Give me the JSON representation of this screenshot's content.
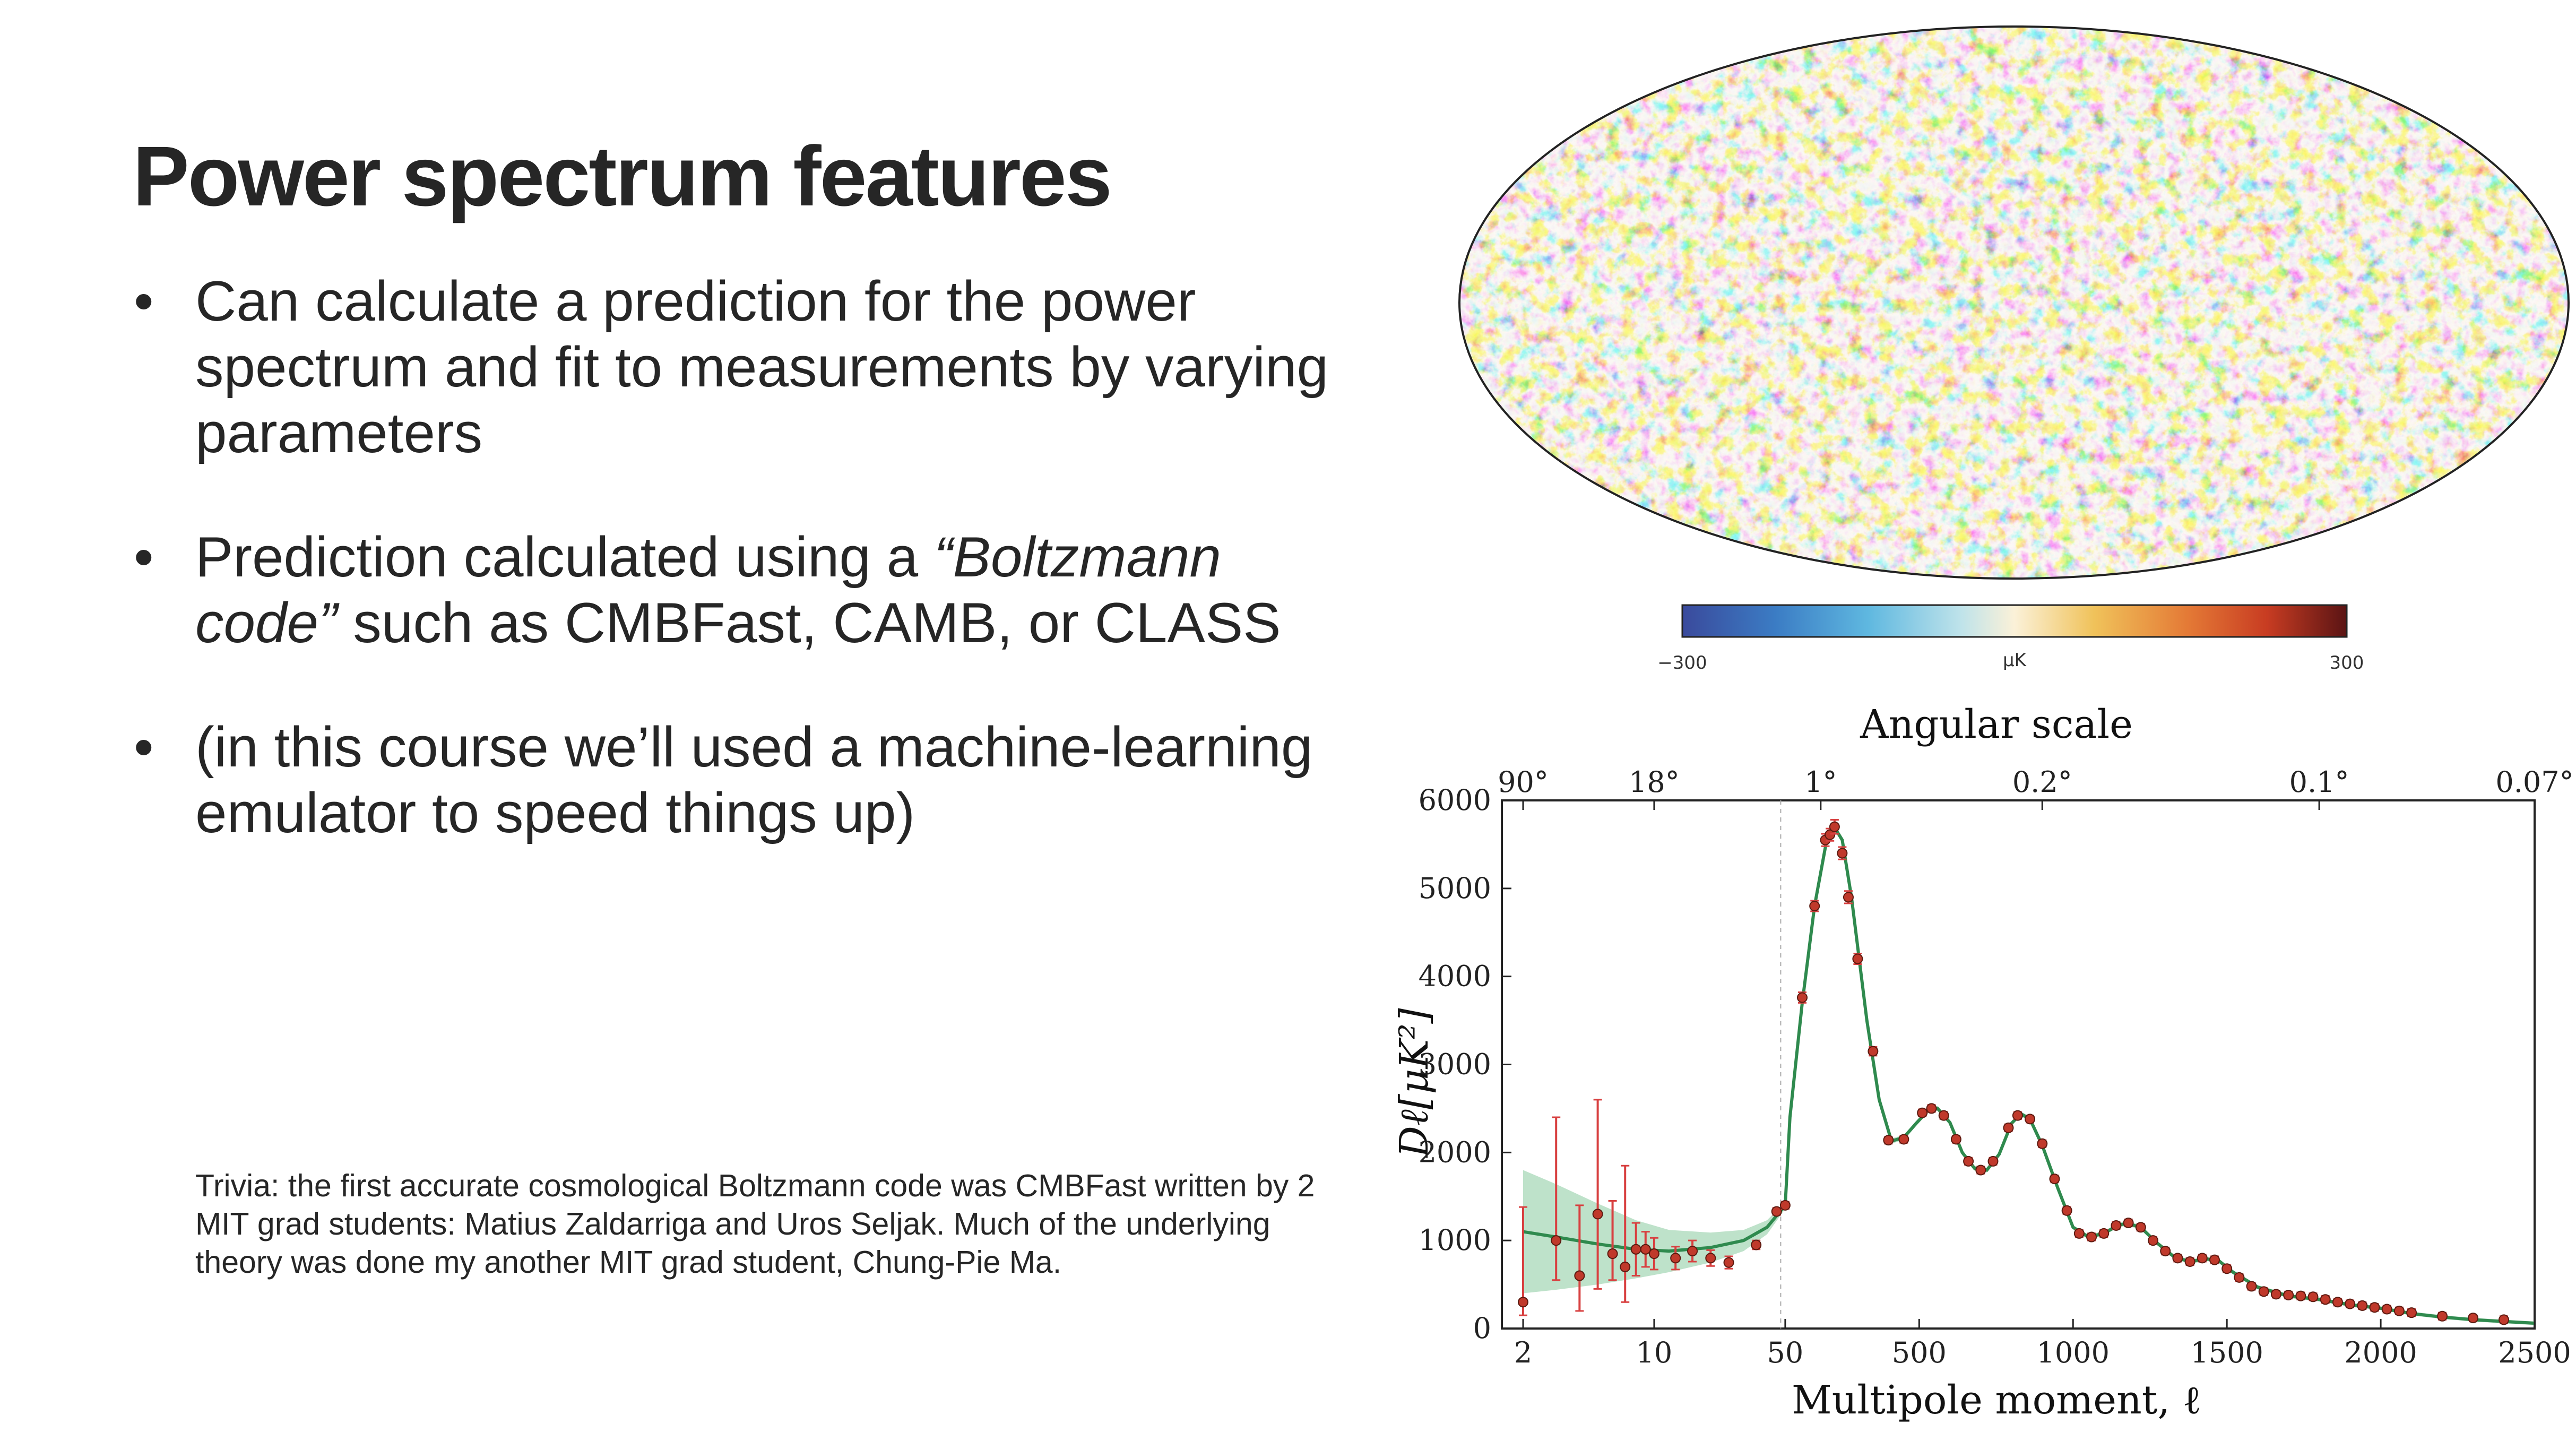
{
  "slide": {
    "title": "Power spectrum features",
    "bullets": [
      {
        "text": "Can calculate a prediction for the power spectrum and fit to measurements by varying parameters"
      },
      {
        "pre": "Prediction calculated using a ",
        "italic": "“Boltzmann code”",
        "post": " such as CMBFast, CAMB, or CLASS"
      },
      {
        "text": "(in this course we’ll used a machine-learning emulator to speed things up)"
      }
    ],
    "trivia": "Trivia: the first accurate cosmological Boltzmann code was CMBFast written by 2 MIT grad students: Matius Zaldarriga and Uros Seljak. Much of the underlying theory was done my another MIT grad student, Chung-Pie Ma."
  },
  "skymap": {
    "colorbar_min": "−300",
    "colorbar_unit": "μK",
    "colorbar_max": "300",
    "colors": [
      "#3a4a9c",
      "#3b7cc4",
      "#5fb8e0",
      "#bfe3ea",
      "#fbf1d8",
      "#f0c25a",
      "#e47a36",
      "#c83c22",
      "#5a1414"
    ]
  },
  "chart_data": {
    "type": "scatter",
    "title": "Angular scale",
    "xlabel": "Multipole moment, ℓ",
    "ylabel": "Dℓ[μK²]",
    "ylim": [
      0,
      6000
    ],
    "yticks": [
      "0",
      "1000",
      "2000",
      "3000",
      "4000",
      "5000",
      "6000"
    ],
    "xticks": [
      {
        "label": "2",
        "ell": 2
      },
      {
        "label": "10",
        "ell": 10
      },
      {
        "label": "50",
        "ell": 50
      },
      {
        "label": "500",
        "ell": 500
      },
      {
        "label": "1000",
        "ell": 1000
      },
      {
        "label": "1500",
        "ell": 1500
      },
      {
        "label": "2000",
        "ell": 2000
      },
      {
        "label": "2500",
        "ell": 2500
      }
    ],
    "top_ticks": [
      {
        "label": "90°",
        "ell": 2
      },
      {
        "label": "18°",
        "ell": 10
      },
      {
        "label": "1°",
        "ell": 180
      },
      {
        "label": "0.2°",
        "ell": 900
      },
      {
        "label": "0.1°",
        "ell": 1800
      },
      {
        "label": "0.07°",
        "ell": 2500
      }
    ],
    "colors": {
      "theory": "#2f8a4e",
      "band": "#a8d8b8",
      "points": "#c0392b",
      "errorbars": "#d84040"
    },
    "theory": [
      [
        2,
        1100
      ],
      [
        3,
        1040
      ],
      [
        5,
        960
      ],
      [
        8,
        900
      ],
      [
        12,
        880
      ],
      [
        20,
        920
      ],
      [
        30,
        1000
      ],
      [
        40,
        1150
      ],
      [
        50,
        1400
      ],
      [
        80,
        2400
      ],
      [
        120,
        3700
      ],
      [
        160,
        4800
      ],
      [
        200,
        5560
      ],
      [
        220,
        5720
      ],
      [
        250,
        5550
      ],
      [
        280,
        4900
      ],
      [
        330,
        3500
      ],
      [
        370,
        2600
      ],
      [
        410,
        2130
      ],
      [
        450,
        2170
      ],
      [
        490,
        2330
      ],
      [
        530,
        2480
      ],
      [
        560,
        2500
      ],
      [
        600,
        2340
      ],
      [
        640,
        2000
      ],
      [
        680,
        1820
      ],
      [
        720,
        1800
      ],
      [
        760,
        1980
      ],
      [
        800,
        2330
      ],
      [
        830,
        2440
      ],
      [
        860,
        2380
      ],
      [
        900,
        2080
      ],
      [
        950,
        1600
      ],
      [
        1000,
        1150
      ],
      [
        1050,
        1040
      ],
      [
        1100,
        1080
      ],
      [
        1150,
        1180
      ],
      [
        1180,
        1190
      ],
      [
        1220,
        1150
      ],
      [
        1270,
        980
      ],
      [
        1330,
        810
      ],
      [
        1380,
        760
      ],
      [
        1430,
        790
      ],
      [
        1470,
        780
      ],
      [
        1520,
        640
      ],
      [
        1600,
        470
      ],
      [
        1700,
        370
      ],
      [
        1800,
        330
      ],
      [
        1900,
        270
      ],
      [
        2000,
        230
      ],
      [
        2100,
        170
      ],
      [
        2200,
        130
      ],
      [
        2300,
        100
      ],
      [
        2400,
        80
      ],
      [
        2500,
        60
      ]
    ],
    "band_halfwidth": [
      [
        2,
        700
      ],
      [
        3,
        600
      ],
      [
        5,
        460
      ],
      [
        8,
        330
      ],
      [
        12,
        240
      ],
      [
        20,
        170
      ],
      [
        30,
        120
      ],
      [
        40,
        80
      ],
      [
        50,
        40
      ],
      [
        80,
        30
      ],
      [
        2500,
        20
      ]
    ],
    "points": [
      [
        2,
        300,
        150,
        1080
      ],
      [
        3,
        1000,
        450,
        1400
      ],
      [
        4,
        600,
        400,
        800
      ],
      [
        5,
        1300,
        850,
        1300
      ],
      [
        6,
        850,
        300,
        600
      ],
      [
        7,
        700,
        400,
        1150
      ],
      [
        8,
        900,
        300,
        300
      ],
      [
        9,
        900,
        200,
        200
      ],
      [
        10,
        850,
        180,
        180
      ],
      [
        13,
        800,
        130,
        130
      ],
      [
        16,
        880,
        120,
        120
      ],
      [
        20,
        800,
        90,
        90
      ],
      [
        25,
        750,
        70,
        70
      ],
      [
        35,
        950,
        50,
        50
      ],
      [
        45,
        1330,
        40,
        40
      ],
      [
        50,
        1400,
        40,
        40
      ],
      [
        120,
        3760,
        60,
        60
      ],
      [
        160,
        4800,
        60,
        60
      ],
      [
        195,
        5550,
        70,
        70
      ],
      [
        210,
        5610,
        70,
        70
      ],
      [
        225,
        5700,
        80,
        80
      ],
      [
        250,
        5400,
        70,
        70
      ],
      [
        270,
        4900,
        70,
        70
      ],
      [
        300,
        4200,
        60,
        60
      ],
      [
        350,
        3150,
        50,
        50
      ],
      [
        400,
        2140,
        40,
        40
      ],
      [
        450,
        2150,
        40,
        40
      ],
      [
        510,
        2450,
        40,
        40
      ],
      [
        540,
        2500,
        40,
        40
      ],
      [
        580,
        2420,
        40,
        40
      ],
      [
        620,
        2150,
        40,
        40
      ],
      [
        660,
        1900,
        40,
        40
      ],
      [
        700,
        1800,
        40,
        40
      ],
      [
        740,
        1900,
        40,
        40
      ],
      [
        790,
        2280,
        40,
        40
      ],
      [
        820,
        2420,
        40,
        40
      ],
      [
        860,
        2380,
        40,
        40
      ],
      [
        900,
        2100,
        40,
        40
      ],
      [
        940,
        1700,
        40,
        40
      ],
      [
        980,
        1340,
        40,
        40
      ],
      [
        1020,
        1080,
        40,
        40
      ],
      [
        1060,
        1040,
        40,
        40
      ],
      [
        1100,
        1080,
        40,
        40
      ],
      [
        1140,
        1170,
        40,
        40
      ],
      [
        1180,
        1200,
        40,
        40
      ],
      [
        1220,
        1150,
        40,
        40
      ],
      [
        1260,
        1000,
        40,
        40
      ],
      [
        1300,
        880,
        40,
        40
      ],
      [
        1340,
        800,
        40,
        40
      ],
      [
        1380,
        760,
        40,
        40
      ],
      [
        1420,
        800,
        40,
        40
      ],
      [
        1460,
        780,
        40,
        40
      ],
      [
        1500,
        680,
        40,
        40
      ],
      [
        1540,
        580,
        40,
        40
      ],
      [
        1580,
        480,
        40,
        40
      ],
      [
        1620,
        420,
        40,
        40
      ],
      [
        1660,
        390,
        40,
        40
      ],
      [
        1700,
        380,
        40,
        40
      ],
      [
        1740,
        370,
        40,
        40
      ],
      [
        1780,
        360,
        40,
        40
      ],
      [
        1820,
        330,
        40,
        40
      ],
      [
        1860,
        300,
        40,
        40
      ],
      [
        1900,
        280,
        40,
        40
      ],
      [
        1940,
        260,
        40,
        40
      ],
      [
        1980,
        240,
        40,
        40
      ],
      [
        2020,
        220,
        40,
        40
      ],
      [
        2060,
        200,
        40,
        40
      ],
      [
        2100,
        180,
        40,
        40
      ],
      [
        2200,
        140,
        40,
        40
      ],
      [
        2300,
        120,
        40,
        40
      ],
      [
        2400,
        100,
        40,
        40
      ]
    ]
  }
}
